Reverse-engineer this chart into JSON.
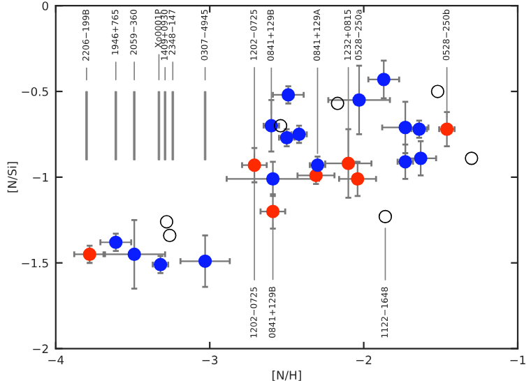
{
  "chart_data": {
    "type": "scatter",
    "xlabel": "[N/H]",
    "ylabel": "[N/Si]",
    "xlim": [
      -4,
      -1
    ],
    "ylim": [
      -2,
      0
    ],
    "xticks": [
      {
        "value": -4,
        "label": "−4"
      },
      {
        "value": -3,
        "label": "−3"
      },
      {
        "value": -2,
        "label": "−2"
      },
      {
        "value": -1,
        "label": "−1"
      }
    ],
    "yticks": [
      {
        "value": -2,
        "label": "−2"
      },
      {
        "value": -1.5,
        "label": "−1.5"
      },
      {
        "value": -1,
        "label": "−1"
      },
      {
        "value": -0.5,
        "label": "−0.5"
      },
      {
        "value": 0,
        "label": "0"
      }
    ],
    "grid": false,
    "legend": false,
    "series": [
      {
        "color": "#ff2a00",
        "marker": "circle",
        "x": [
          -3.78,
          -2.71,
          -2.59,
          -2.31,
          -2.1,
          -2.04,
          -1.46
        ],
        "values": [
          -1.45,
          -0.93,
          -1.2,
          -0.99,
          -0.92,
          -1.01,
          -0.72
        ],
        "xerrors": [
          0.1,
          0.08,
          0.08,
          0.12,
          0.15,
          0.12,
          0.05
        ],
        "errors": [
          0.05,
          0.1,
          0.1,
          0.05,
          0.2,
          0.1,
          0.1
        ]
      },
      {
        "color": "#0a1eff",
        "marker": "circle",
        "x": [
          -3.61,
          -3.49,
          -3.32,
          -3.03,
          -2.59,
          -2.6,
          -2.5,
          -2.49,
          -2.42,
          -2.3,
          -2.03,
          -1.87,
          -1.73,
          -1.64,
          -1.73,
          -1.63
        ],
        "values": [
          -1.38,
          -1.45,
          -1.51,
          -1.49,
          -1.01,
          -0.7,
          -0.77,
          -0.52,
          -0.75,
          -0.93,
          -0.55,
          -0.43,
          -0.71,
          -0.72,
          -0.91,
          -0.89
        ],
        "xerrors": [
          0.1,
          0.2,
          0.05,
          0.16,
          0.3,
          0.05,
          0.05,
          0.1,
          0.05,
          0.05,
          0.2,
          0.1,
          0.15,
          0.05,
          0.05,
          0.1
        ],
        "errors": [
          0.05,
          0.2,
          0.05,
          0.15,
          0.1,
          0.15,
          0.05,
          0.05,
          0.05,
          0.05,
          0.2,
          0.11,
          0.15,
          0.05,
          0.1,
          0.1
        ]
      },
      {
        "color": "#000000",
        "marker": "circle",
        "x": [
          -3.28,
          -3.26,
          -2.54,
          -2.17,
          -1.52,
          -1.3,
          -1.86
        ],
        "values": [
          -1.26,
          -1.34,
          -0.7,
          -0.57,
          -0.5,
          -0.89,
          -1.23
        ]
      },
      {
        "type": "bar",
        "color": "#808080",
        "x": [
          -3.8,
          -3.61,
          -3.49,
          -3.33,
          -3.29,
          -3.24,
          -3.03
        ],
        "base": [
          -0.9,
          -0.9,
          -0.9,
          -0.9,
          -0.9,
          -0.9,
          -0.9
        ],
        "values": [
          0.4,
          0.4,
          0.4,
          0.4,
          0.4,
          0.4,
          0.4
        ]
      }
    ],
    "annotations": [
      {
        "text": "2206−199B",
        "x": -3.8,
        "y": -0.5
      },
      {
        "text": "1946+765",
        "x": -3.61,
        "y": -0.5
      },
      {
        "text": "2059−360",
        "x": -3.49,
        "y": -0.5
      },
      {
        "text": "Xo0001P",
        "x": -3.33,
        "y": -0.5
      },
      {
        "text": "1409+0930",
        "x": -3.29,
        "y": -0.5
      },
      {
        "text": "2348−147",
        "x": -3.24,
        "y": -0.5
      },
      {
        "text": "0307−4945",
        "x": -3.03,
        "y": -0.5
      },
      {
        "text": "1202−0725",
        "x": -2.71,
        "y": -0.93
      },
      {
        "text": "0841+129B",
        "x": -2.6,
        "y": -0.7
      },
      {
        "text": "0841+129A",
        "x": -2.3,
        "y": -0.93
      },
      {
        "text": "1232+0815",
        "x": -2.1,
        "y": -0.92
      },
      {
        "text": "0528−250a",
        "x": -2.03,
        "y": -0.55
      },
      {
        "text": "0528−250b",
        "x": -1.46,
        "y": -0.72
      },
      {
        "text": "1202−0725",
        "x": -2.71,
        "y": -0.93
      },
      {
        "text": "0841+129B",
        "x": -2.59,
        "y": -1.2
      },
      {
        "text": "1122−1648",
        "x": -1.86,
        "y": -1.23
      }
    ]
  }
}
